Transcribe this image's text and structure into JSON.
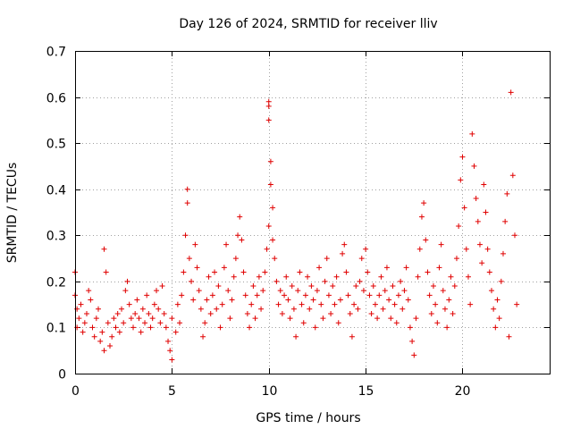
{
  "chart_data": {
    "type": "scatter",
    "title": "Day 126 of 2024, SRMTID for receiver lliv",
    "xlabel": "GPS time / hours",
    "ylabel": "SRMTID / TECUs",
    "xlim": [
      0,
      24.5
    ],
    "ylim": [
      0,
      0.7
    ],
    "xticks": [
      0,
      5,
      10,
      15,
      20
    ],
    "yticks": [
      0,
      0.1,
      0.2,
      0.3,
      0.4,
      0.5,
      0.6,
      0.7
    ],
    "xtick_labels": [
      "0",
      "5",
      "10",
      "15",
      "20"
    ],
    "ytick_labels": [
      "0",
      "0.1",
      "0.2",
      "0.3",
      "0.4",
      "0.5",
      "0.6",
      "0.7"
    ],
    "grid": true,
    "marker": "+",
    "color": "#e00000",
    "series": [
      {
        "name": "SRMTID",
        "points": [
          [
            0.0,
            0.22
          ],
          [
            0.0,
            0.17
          ],
          [
            0.1,
            0.14
          ],
          [
            0.1,
            0.1
          ],
          [
            0.2,
            0.12
          ],
          [
            0.3,
            0.15
          ],
          [
            0.4,
            0.09
          ],
          [
            0.5,
            0.11
          ],
          [
            0.6,
            0.13
          ],
          [
            0.7,
            0.18
          ],
          [
            0.8,
            0.16
          ],
          [
            0.9,
            0.1
          ],
          [
            1.0,
            0.08
          ],
          [
            1.1,
            0.12
          ],
          [
            1.2,
            0.14
          ],
          [
            1.3,
            0.07
          ],
          [
            1.4,
            0.09
          ],
          [
            1.5,
            0.05
          ],
          [
            1.5,
            0.27
          ],
          [
            1.6,
            0.22
          ],
          [
            1.7,
            0.11
          ],
          [
            1.8,
            0.06
          ],
          [
            1.9,
            0.08
          ],
          [
            2.0,
            0.12
          ],
          [
            2.1,
            0.1
          ],
          [
            2.2,
            0.13
          ],
          [
            2.3,
            0.09
          ],
          [
            2.4,
            0.14
          ],
          [
            2.5,
            0.11
          ],
          [
            2.6,
            0.18
          ],
          [
            2.7,
            0.2
          ],
          [
            2.8,
            0.15
          ],
          [
            2.9,
            0.12
          ],
          [
            3.0,
            0.1
          ],
          [
            3.1,
            0.13
          ],
          [
            3.2,
            0.16
          ],
          [
            3.3,
            0.12
          ],
          [
            3.4,
            0.09
          ],
          [
            3.5,
            0.14
          ],
          [
            3.6,
            0.11
          ],
          [
            3.7,
            0.17
          ],
          [
            3.8,
            0.13
          ],
          [
            3.9,
            0.1
          ],
          [
            4.0,
            0.12
          ],
          [
            4.1,
            0.15
          ],
          [
            4.2,
            0.18
          ],
          [
            4.3,
            0.14
          ],
          [
            4.4,
            0.11
          ],
          [
            4.5,
            0.19
          ],
          [
            4.6,
            0.13
          ],
          [
            4.7,
            0.1
          ],
          [
            4.8,
            0.07
          ],
          [
            4.9,
            0.05
          ],
          [
            5.0,
            0.03
          ],
          [
            5.0,
            0.12
          ],
          [
            5.2,
            0.09
          ],
          [
            5.3,
            0.15
          ],
          [
            5.4,
            0.11
          ],
          [
            5.5,
            0.17
          ],
          [
            5.6,
            0.22
          ],
          [
            5.7,
            0.3
          ],
          [
            5.8,
            0.37
          ],
          [
            5.8,
            0.4
          ],
          [
            5.9,
            0.25
          ],
          [
            6.0,
            0.2
          ],
          [
            6.1,
            0.16
          ],
          [
            6.2,
            0.28
          ],
          [
            6.3,
            0.23
          ],
          [
            6.4,
            0.18
          ],
          [
            6.5,
            0.14
          ],
          [
            6.6,
            0.08
          ],
          [
            6.7,
            0.11
          ],
          [
            6.8,
            0.16
          ],
          [
            6.9,
            0.21
          ],
          [
            7.0,
            0.13
          ],
          [
            7.1,
            0.17
          ],
          [
            7.2,
            0.22
          ],
          [
            7.3,
            0.14
          ],
          [
            7.4,
            0.19
          ],
          [
            7.5,
            0.1
          ],
          [
            7.6,
            0.15
          ],
          [
            7.7,
            0.23
          ],
          [
            7.8,
            0.28
          ],
          [
            7.9,
            0.18
          ],
          [
            8.0,
            0.12
          ],
          [
            8.1,
            0.16
          ],
          [
            8.2,
            0.21
          ],
          [
            8.3,
            0.25
          ],
          [
            8.4,
            0.3
          ],
          [
            8.5,
            0.34
          ],
          [
            8.6,
            0.29
          ],
          [
            8.7,
            0.22
          ],
          [
            8.8,
            0.17
          ],
          [
            8.9,
            0.13
          ],
          [
            9.0,
            0.1
          ],
          [
            9.1,
            0.15
          ],
          [
            9.2,
            0.19
          ],
          [
            9.3,
            0.12
          ],
          [
            9.4,
            0.17
          ],
          [
            9.5,
            0.21
          ],
          [
            9.6,
            0.14
          ],
          [
            9.7,
            0.18
          ],
          [
            9.8,
            0.22
          ],
          [
            9.9,
            0.27
          ],
          [
            10.0,
            0.32
          ],
          [
            10.0,
            0.59
          ],
          [
            10.0,
            0.58
          ],
          [
            10.0,
            0.55
          ],
          [
            10.1,
            0.46
          ],
          [
            10.1,
            0.41
          ],
          [
            10.2,
            0.36
          ],
          [
            10.2,
            0.29
          ],
          [
            10.3,
            0.25
          ],
          [
            10.4,
            0.2
          ],
          [
            10.5,
            0.15
          ],
          [
            10.6,
            0.18
          ],
          [
            10.7,
            0.13
          ],
          [
            10.8,
            0.17
          ],
          [
            10.9,
            0.21
          ],
          [
            11.0,
            0.16
          ],
          [
            11.1,
            0.12
          ],
          [
            11.2,
            0.19
          ],
          [
            11.3,
            0.14
          ],
          [
            11.4,
            0.08
          ],
          [
            11.5,
            0.18
          ],
          [
            11.6,
            0.22
          ],
          [
            11.7,
            0.15
          ],
          [
            11.8,
            0.11
          ],
          [
            11.9,
            0.17
          ],
          [
            12.0,
            0.21
          ],
          [
            12.1,
            0.14
          ],
          [
            12.2,
            0.19
          ],
          [
            12.3,
            0.16
          ],
          [
            12.4,
            0.1
          ],
          [
            12.5,
            0.18
          ],
          [
            12.6,
            0.23
          ],
          [
            12.7,
            0.15
          ],
          [
            12.8,
            0.12
          ],
          [
            12.9,
            0.2
          ],
          [
            13.0,
            0.25
          ],
          [
            13.1,
            0.17
          ],
          [
            13.2,
            0.13
          ],
          [
            13.3,
            0.19
          ],
          [
            13.4,
            0.15
          ],
          [
            13.5,
            0.21
          ],
          [
            13.6,
            0.11
          ],
          [
            13.7,
            0.16
          ],
          [
            13.8,
            0.26
          ],
          [
            13.9,
            0.28
          ],
          [
            14.0,
            0.22
          ],
          [
            14.1,
            0.17
          ],
          [
            14.2,
            0.13
          ],
          [
            14.3,
            0.08
          ],
          [
            14.4,
            0.15
          ],
          [
            14.5,
            0.19
          ],
          [
            14.6,
            0.14
          ],
          [
            14.7,
            0.2
          ],
          [
            14.8,
            0.25
          ],
          [
            14.9,
            0.18
          ],
          [
            15.0,
            0.27
          ],
          [
            15.1,
            0.22
          ],
          [
            15.2,
            0.17
          ],
          [
            15.3,
            0.13
          ],
          [
            15.4,
            0.19
          ],
          [
            15.5,
            0.15
          ],
          [
            15.6,
            0.12
          ],
          [
            15.7,
            0.17
          ],
          [
            15.8,
            0.21
          ],
          [
            15.9,
            0.14
          ],
          [
            16.0,
            0.18
          ],
          [
            16.1,
            0.23
          ],
          [
            16.2,
            0.16
          ],
          [
            16.3,
            0.12
          ],
          [
            16.4,
            0.19
          ],
          [
            16.5,
            0.15
          ],
          [
            16.6,
            0.11
          ],
          [
            16.7,
            0.17
          ],
          [
            16.8,
            0.2
          ],
          [
            16.9,
            0.14
          ],
          [
            17.0,
            0.18
          ],
          [
            17.1,
            0.23
          ],
          [
            17.2,
            0.16
          ],
          [
            17.3,
            0.1
          ],
          [
            17.4,
            0.07
          ],
          [
            17.5,
            0.04
          ],
          [
            17.6,
            0.12
          ],
          [
            17.7,
            0.21
          ],
          [
            17.8,
            0.27
          ],
          [
            17.9,
            0.34
          ],
          [
            18.0,
            0.37
          ],
          [
            18.1,
            0.29
          ],
          [
            18.2,
            0.22
          ],
          [
            18.3,
            0.17
          ],
          [
            18.4,
            0.13
          ],
          [
            18.5,
            0.19
          ],
          [
            18.6,
            0.15
          ],
          [
            18.7,
            0.11
          ],
          [
            18.8,
            0.23
          ],
          [
            18.9,
            0.28
          ],
          [
            19.0,
            0.18
          ],
          [
            19.1,
            0.14
          ],
          [
            19.2,
            0.1
          ],
          [
            19.3,
            0.16
          ],
          [
            19.4,
            0.21
          ],
          [
            19.5,
            0.13
          ],
          [
            19.6,
            0.19
          ],
          [
            19.7,
            0.25
          ],
          [
            19.8,
            0.32
          ],
          [
            19.9,
            0.42
          ],
          [
            20.0,
            0.47
          ],
          [
            20.1,
            0.36
          ],
          [
            20.2,
            0.27
          ],
          [
            20.3,
            0.21
          ],
          [
            20.4,
            0.15
          ],
          [
            20.5,
            0.52
          ],
          [
            20.6,
            0.45
          ],
          [
            20.7,
            0.38
          ],
          [
            20.8,
            0.33
          ],
          [
            20.9,
            0.28
          ],
          [
            21.0,
            0.24
          ],
          [
            21.1,
            0.41
          ],
          [
            21.2,
            0.35
          ],
          [
            21.3,
            0.27
          ],
          [
            21.4,
            0.22
          ],
          [
            21.5,
            0.18
          ],
          [
            21.6,
            0.14
          ],
          [
            21.7,
            0.1
          ],
          [
            21.8,
            0.16
          ],
          [
            21.9,
            0.12
          ],
          [
            22.0,
            0.2
          ],
          [
            22.1,
            0.26
          ],
          [
            22.2,
            0.33
          ],
          [
            22.3,
            0.39
          ],
          [
            22.4,
            0.08
          ],
          [
            22.5,
            0.61
          ],
          [
            22.6,
            0.43
          ],
          [
            22.7,
            0.3
          ],
          [
            22.8,
            0.15
          ]
        ]
      }
    ]
  }
}
